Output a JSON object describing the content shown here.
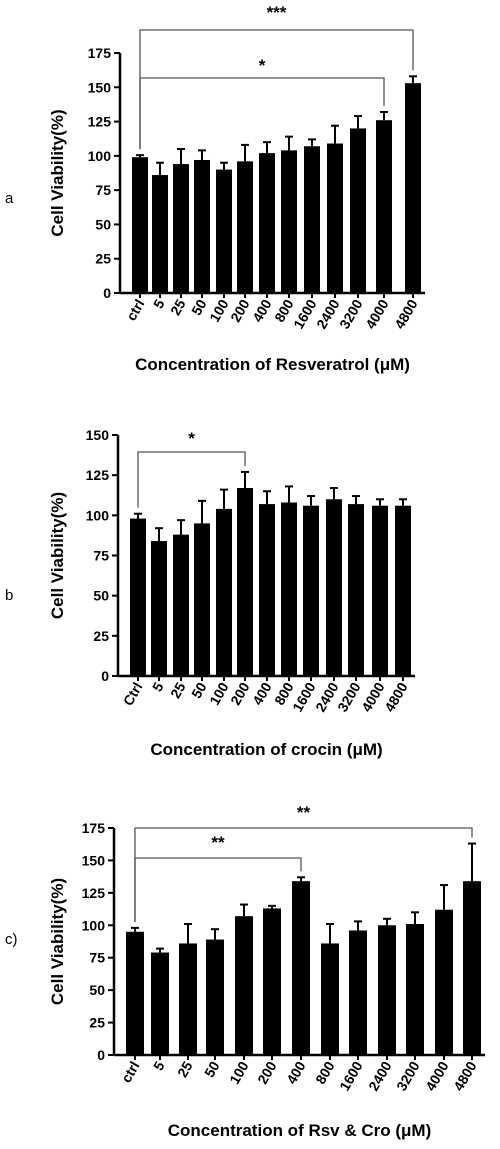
{
  "chart_data": [
    {
      "type": "bar",
      "panel_label": "a",
      "xlabel": "Concentration of Resveratrol (μM)",
      "ylabel": "Cell Viability(%)",
      "ylim": [
        0,
        175
      ],
      "yticks": [
        0,
        25,
        50,
        75,
        100,
        125,
        150,
        175
      ],
      "categories": [
        "ctrl",
        "5",
        "25",
        "50",
        "100",
        "200",
        "400",
        "800",
        "1600",
        "2400",
        "3200",
        "4000",
        "4800"
      ],
      "series": [
        {
          "values": [
            99,
            86,
            94,
            97,
            90,
            96,
            102,
            104,
            107,
            109,
            120,
            126,
            153
          ],
          "errors": [
            1.5,
            9,
            11,
            7,
            5,
            12,
            8,
            10,
            5,
            13,
            9,
            6,
            5
          ]
        }
      ],
      "significance": [
        {
          "from": "ctrl",
          "to": "4000",
          "label": "*"
        },
        {
          "from": "ctrl",
          "to": "4800",
          "label": "***"
        }
      ]
    },
    {
      "type": "bar",
      "panel_label": "b",
      "xlabel": "Concentration of crocin (μM)",
      "ylabel": "Cell Viability(%)",
      "ylim": [
        0,
        150
      ],
      "yticks": [
        0,
        25,
        50,
        75,
        100,
        125,
        150
      ],
      "categories": [
        "Ctrl",
        "5",
        "25",
        "50",
        "100",
        "200",
        "400",
        "800",
        "1600",
        "2400",
        "3200",
        "4000",
        "4800"
      ],
      "series": [
        {
          "values": [
            98,
            84,
            88,
            95,
            104,
            117,
            107,
            108,
            106,
            110,
            107,
            106,
            106
          ],
          "errors": [
            3,
            8,
            9,
            14,
            12,
            10,
            8,
            10,
            6,
            7,
            5,
            4,
            4
          ]
        }
      ],
      "significance": [
        {
          "from": "Ctrl",
          "to": "200",
          "label": "*"
        }
      ]
    },
    {
      "type": "bar",
      "panel_label": "c)",
      "xlabel": "Concentration of Rsv & Cro (μM)",
      "ylabel": "Cell Viability(%)",
      "ylim": [
        0,
        175
      ],
      "yticks": [
        0,
        25,
        50,
        75,
        100,
        125,
        150,
        175
      ],
      "categories": [
        "ctrl",
        "5",
        "25",
        "50",
        "100",
        "200",
        "400",
        "800",
        "1600",
        "2400",
        "3200",
        "4000",
        "4800"
      ],
      "series": [
        {
          "values": [
            95,
            79,
            86,
            89,
            107,
            113,
            134,
            86,
            96,
            100,
            101,
            112,
            134
          ],
          "errors": [
            3,
            3,
            15,
            8,
            9,
            2,
            3,
            15,
            7,
            5,
            9,
            19,
            29
          ]
        }
      ],
      "significance": [
        {
          "from": "ctrl",
          "to": "400",
          "label": "**"
        },
        {
          "from": "ctrl",
          "to": "4800",
          "label": "**"
        }
      ]
    }
  ]
}
